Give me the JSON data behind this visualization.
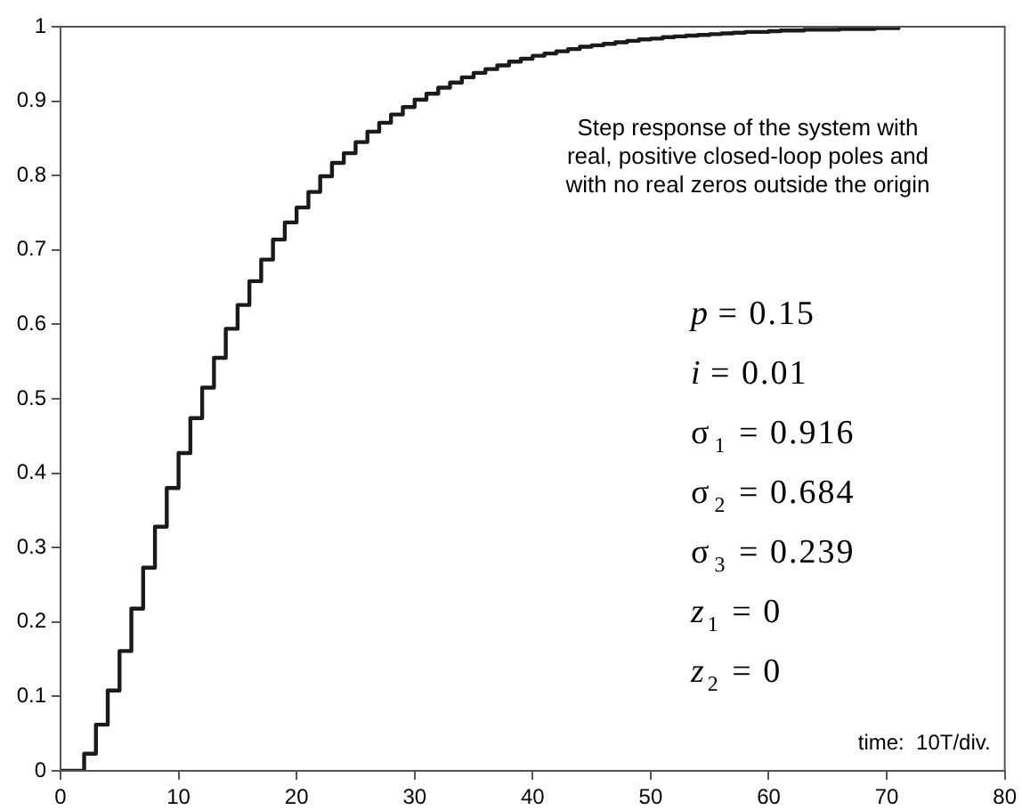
{
  "chart_data": {
    "type": "step",
    "x": [
      0,
      1,
      2,
      3,
      4,
      5,
      6,
      7,
      8,
      9,
      10,
      11,
      12,
      13,
      14,
      15,
      16,
      17,
      18,
      19,
      20,
      21,
      22,
      23,
      24,
      25,
      26,
      27,
      28,
      29,
      30,
      31,
      32,
      33,
      34,
      35,
      36,
      37,
      38,
      39,
      40,
      41,
      42,
      43,
      44,
      45,
      46,
      47,
      48,
      49,
      50,
      51,
      52,
      53,
      54,
      55,
      56,
      57,
      58,
      59,
      60,
      61,
      62,
      63,
      64,
      65,
      66,
      67,
      68,
      69,
      70,
      71
    ],
    "series": [
      {
        "color": "#1a1a1a",
        "values": [
          0,
          0,
          0.023,
          0.062,
          0.108,
          0.161,
          0.218,
          0.273,
          0.328,
          0.38,
          0.427,
          0.474,
          0.515,
          0.555,
          0.594,
          0.626,
          0.658,
          0.687,
          0.714,
          0.737,
          0.757,
          0.778,
          0.799,
          0.817,
          0.83,
          0.845,
          0.859,
          0.871,
          0.882,
          0.892,
          0.902,
          0.91,
          0.918,
          0.925,
          0.932,
          0.938,
          0.943,
          0.948,
          0.953,
          0.957,
          0.961,
          0.964,
          0.967,
          0.97,
          0.973,
          0.975,
          0.977,
          0.979,
          0.981,
          0.983,
          0.984,
          0.986,
          0.987,
          0.988,
          0.989,
          0.99,
          0.991,
          0.992,
          0.993,
          0.993,
          0.994,
          0.995,
          0.995,
          0.996,
          0.996,
          0.996,
          0.997,
          0.997,
          0.997,
          0.998,
          0.998,
          0.998
        ]
      }
    ],
    "xlim": [
      0,
      80
    ],
    "xticks": [
      0,
      10,
      20,
      30,
      40,
      50,
      60,
      70,
      80
    ],
    "ylim": [
      0,
      1
    ],
    "yticks": [
      0,
      0.1,
      0.2,
      0.3,
      0.4,
      0.5,
      0.6,
      0.7,
      0.8,
      0.9,
      1
    ],
    "grid": false,
    "legend": false,
    "marker": "none",
    "line_style": "solid",
    "annotations": [
      "Step response of the system with",
      "real, positive closed-loop poles and",
      "with no real zeros outside the origin",
      "p = 0.15",
      "i = 0.01",
      "σ$_{1}$ = 0.916",
      "σ$_{2}$ = 0.684",
      "σ$_{3}$ = 0.239",
      "z$_{1}$ = 0",
      "z$_{2}$ = 0",
      "time:  10T/div."
    ]
  }
}
